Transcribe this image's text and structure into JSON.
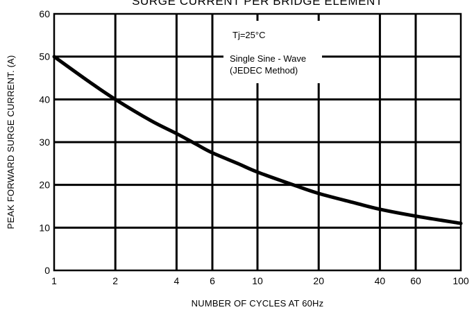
{
  "chart_data": {
    "type": "line",
    "title": "SURGE CURRENT PER BRIDGE ELEMENT",
    "xlabel": "NUMBER OF CYCLES AT 60Hz",
    "ylabel": "PEAK FORWARD SURGE CURRENT. (A)",
    "x_scale": "log",
    "xlim": [
      1,
      100
    ],
    "ylim": [
      0,
      60
    ],
    "x_ticks": [
      1,
      2,
      4,
      6,
      10,
      20,
      40,
      60,
      100
    ],
    "x_tick_labels": [
      "1",
      "2",
      "4",
      "6",
      "10",
      "20",
      "40",
      "60",
      "100"
    ],
    "y_ticks": [
      0,
      10,
      20,
      30,
      40,
      50,
      60
    ],
    "y_tick_labels": [
      "0",
      "10",
      "20",
      "30",
      "40",
      "50",
      "60"
    ],
    "grid": true,
    "annotations": [
      "Tj=25°C",
      "Single Sine - Wave",
      "(JEDEC Method)"
    ],
    "series": [
      {
        "x": [
          1,
          1.5,
          2,
          3,
          4,
          5,
          6,
          8,
          10,
          15,
          20,
          30,
          40,
          60,
          100
        ],
        "y": [
          50,
          44,
          40,
          35,
          32,
          29.5,
          27.5,
          25,
          23,
          20,
          18,
          15.8,
          14.3,
          12.7,
          11
        ]
      }
    ],
    "line_color": "#000000",
    "grid_color": "#000000"
  }
}
